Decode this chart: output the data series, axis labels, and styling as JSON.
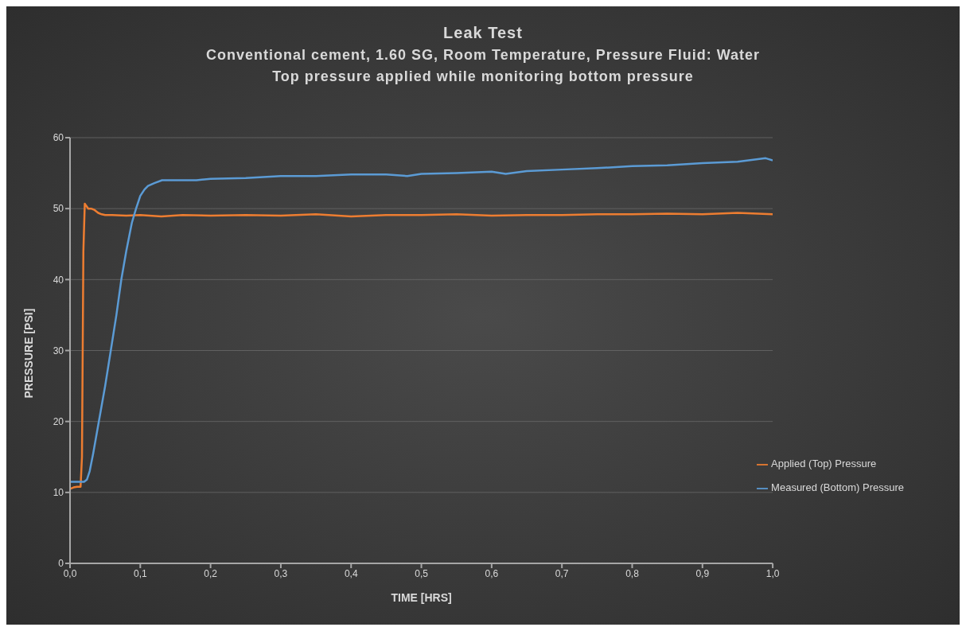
{
  "chart_data": {
    "type": "line",
    "title": "Leak Test",
    "subtitle": "Conventional cement, 1.60 SG,  Room Temperature, Pressure Fluid: Water\nTop pressure applied while monitoring bottom pressure",
    "xlabel": "TIME [HRS]",
    "ylabel": "PRESSURE [PSI]",
    "xlim": [
      0,
      1
    ],
    "xticks": [
      {
        "value": 0,
        "label": "0,0"
      },
      {
        "value": 0.1,
        "label": "0,1"
      },
      {
        "value": 0.2,
        "label": "0,2"
      },
      {
        "value": 0.3,
        "label": "0,3"
      },
      {
        "value": 0.4,
        "label": "0,4"
      },
      {
        "value": 0.5,
        "label": "0,5"
      },
      {
        "value": 0.6,
        "label": "0,6"
      },
      {
        "value": 0.7,
        "label": "0,7"
      },
      {
        "value": 0.8,
        "label": "0,8"
      },
      {
        "value": 0.9,
        "label": "0,9"
      },
      {
        "value": 1,
        "label": "1,0"
      }
    ],
    "ylim": [
      0,
      60
    ],
    "yticks": [
      0,
      10,
      20,
      30,
      40,
      50,
      60
    ],
    "grid": "y",
    "legend": "bottom right",
    "marker": "none",
    "line_style": "solid",
    "series": [
      {
        "name": "Applied (Top) Pressure",
        "color": "#ed7d31",
        "x": [
          0,
          0.005,
          0.01,
          0.015,
          0.017,
          0.019,
          0.021,
          0.023,
          0.026,
          0.03,
          0.035,
          0.04,
          0.045,
          0.05,
          0.06,
          0.08,
          0.1,
          0.13,
          0.16,
          0.2,
          0.25,
          0.3,
          0.35,
          0.4,
          0.45,
          0.5,
          0.55,
          0.6,
          0.65,
          0.7,
          0.75,
          0.8,
          0.85,
          0.9,
          0.95,
          1
        ],
        "values": [
          10.5,
          10.7,
          10.8,
          10.8,
          15,
          44,
          50.7,
          50.4,
          50,
          50,
          49.8,
          49.4,
          49.2,
          49.1,
          49.1,
          49,
          49.1,
          48.9,
          49.1,
          49,
          49.1,
          49,
          49.2,
          48.9,
          49.1,
          49.1,
          49.2,
          49,
          49.1,
          49.1,
          49.2,
          49.2,
          49.3,
          49.2,
          49.4,
          49.2
        ]
      },
      {
        "name": "Measured (Bottom) Pressure",
        "color": "#5b9bd5",
        "x": [
          0,
          0.01,
          0.02,
          0.024,
          0.028,
          0.033,
          0.041,
          0.05,
          0.058,
          0.066,
          0.073,
          0.08,
          0.088,
          0.094,
          0.1,
          0.106,
          0.111,
          0.12,
          0.131,
          0.15,
          0.18,
          0.2,
          0.25,
          0.3,
          0.35,
          0.4,
          0.45,
          0.48,
          0.5,
          0.55,
          0.6,
          0.62,
          0.65,
          0.7,
          0.75,
          0.8,
          0.85,
          0.9,
          0.95,
          0.99,
          1
        ],
        "values": [
          11.5,
          11.5,
          11.5,
          11.8,
          13,
          15.5,
          20,
          25,
          30,
          35,
          40,
          44,
          48,
          50,
          51.8,
          52.7,
          53.2,
          53.6,
          54,
          54,
          54,
          54.2,
          54.3,
          54.6,
          54.6,
          54.8,
          54.8,
          54.6,
          54.9,
          55,
          55.2,
          54.9,
          55.3,
          55.5,
          55.7,
          56,
          56.1,
          56.4,
          56.6,
          57.1,
          56.8
        ]
      }
    ]
  }
}
